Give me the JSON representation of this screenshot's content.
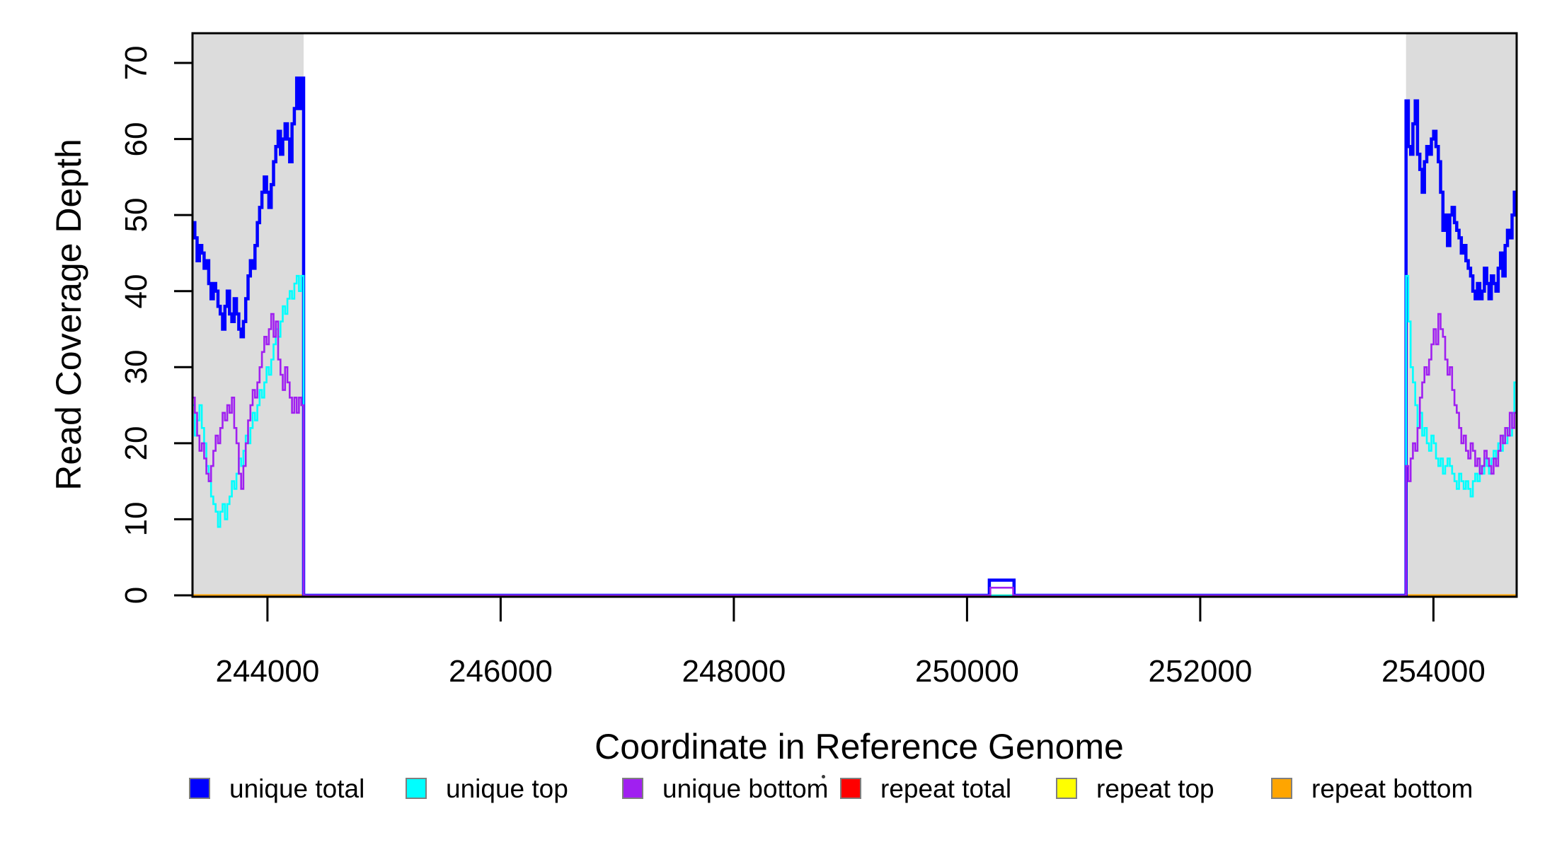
{
  "figure": {
    "x_axis_title": "Coordinate in Reference Genome",
    "y_axis_title": "Read Coverage Depth"
  },
  "legend": {
    "position": "bottom",
    "items": [
      {
        "label": "unique total",
        "color": "#0000FF"
      },
      {
        "label": "unique top",
        "color": "#00FFFF"
      },
      {
        "label": "unique bottom",
        "color": "#A020F0"
      },
      {
        "label": "repeat total",
        "color": "#FF0000"
      },
      {
        "label": "repeat top",
        "color": "#FFFF00"
      },
      {
        "label": "repeat bottom",
        "color": "#FFA500"
      }
    ]
  },
  "chart_data": {
    "type": "line",
    "subtype": "step",
    "title": "",
    "xlabel": "Coordinate in Reference Genome",
    "ylabel": "Read Coverage Depth",
    "xlim": [
      243357,
      254714
    ],
    "ylim": [
      0,
      70
    ],
    "grid": false,
    "legend_position": "bottom",
    "x_ticks": [
      244000,
      246000,
      248000,
      250000,
      252000,
      254000
    ],
    "x_tick_labels": [
      "244000",
      "246000",
      "248000",
      "250000",
      "252000",
      "254000"
    ],
    "y_ticks": [
      0,
      10,
      20,
      30,
      40,
      50,
      60,
      70
    ],
    "y_tick_labels": [
      "0",
      "10",
      "20",
      "30",
      "40",
      "50",
      "60",
      "70"
    ],
    "background_regions": [
      {
        "name": "left-shaded-region",
        "x0": 243357,
        "x1": 244310,
        "color": "#DCDCDC"
      },
      {
        "name": "right-shaded-region",
        "x0": 253765,
        "x1": 254714,
        "color": "#DCDCDC"
      }
    ],
    "x_end": 254714,
    "series": [
      {
        "name": "repeat total",
        "color": "#FF0000",
        "width": 2.6,
        "segments": [
          {
            "points": [
              [
                243357,
                0
              ]
            ]
          }
        ]
      },
      {
        "name": "repeat top",
        "color": "#FFFF00",
        "width": 2.6,
        "segments": [
          {
            "points": [
              [
                243357,
                0
              ]
            ]
          }
        ]
      },
      {
        "name": "repeat bottom",
        "color": "#FFA500",
        "width": 3,
        "segments": [
          {
            "points": [
              [
                243357,
                0
              ]
            ]
          }
        ]
      },
      {
        "name": "unique total",
        "color": "#0000FF",
        "width": 4.5,
        "segments": [
          {
            "x_start": 243357,
            "dx": 19.85,
            "values": [
              49,
              47,
              44,
              46,
              45,
              43,
              44,
              41,
              39,
              41,
              40,
              38,
              37,
              35,
              38,
              40,
              37,
              36,
              39,
              37,
              35,
              34,
              36,
              39,
              42,
              44,
              43,
              46,
              49,
              51,
              53,
              55,
              53,
              51,
              54,
              57,
              59,
              61,
              58,
              60,
              62,
              60,
              57,
              62,
              64,
              68,
              64,
              68
            ]
          },
          {
            "points": [
              [
                244310,
                0
              ],
              [
                250191,
                2
              ],
              [
                250403,
                0
              ]
            ]
          },
          {
            "x_start": 253765,
            "dx": 19.77,
            "values": [
              65,
              59,
              58,
              62,
              65,
              58,
              56,
              53,
              57,
              59,
              58,
              60,
              61,
              59,
              57,
              53,
              48,
              50,
              46,
              50,
              51,
              49,
              48,
              47,
              45,
              46,
              44,
              43,
              42,
              40,
              39,
              41,
              39,
              40,
              43,
              41,
              39,
              42,
              41,
              40,
              43,
              45,
              42,
              46,
              48,
              47,
              50,
              53
            ]
          }
        ]
      },
      {
        "name": "unique top",
        "color": "#00FFFF",
        "width": 2.6,
        "segments": [
          {
            "x_start": 243357,
            "dx": 19.85,
            "values": [
              25,
              21,
              23,
              25,
              22,
              20,
              17,
              15,
              13,
              12,
              11,
              9,
              11,
              12,
              10,
              12,
              13,
              15,
              14,
              16,
              18,
              17,
              19,
              21,
              20,
              22,
              24,
              23,
              25,
              27,
              26,
              28,
              30,
              29,
              31,
              33,
              35,
              34,
              36,
              38,
              37,
              39,
              40,
              39,
              41,
              42,
              40,
              42
            ]
          },
          {
            "points": [
              [
                244310,
                0
              ]
            ]
          },
          {
            "x_start": 253765,
            "dx": 19.77,
            "values": [
              42,
              36,
              30,
              28,
              25,
              22,
              24,
              21,
              22,
              20,
              19,
              21,
              20,
              18,
              17,
              18,
              16,
              17,
              18,
              17,
              16,
              15,
              14,
              16,
              15,
              14,
              15,
              14,
              13,
              15,
              16,
              15,
              17,
              16,
              18,
              17,
              16,
              18,
              19,
              18,
              20,
              19,
              21,
              20,
              22,
              21,
              24,
              28
            ]
          }
        ]
      },
      {
        "name": "unique bottom",
        "color": "#A020F0",
        "width": 2.6,
        "segments": [
          {
            "x_start": 243357,
            "dx": 19.85,
            "values": [
              26,
              24,
              21,
              19,
              20,
              18,
              16,
              15,
              17,
              19,
              21,
              20,
              22,
              24,
              23,
              25,
              24,
              26,
              22,
              20,
              16,
              14,
              17,
              20,
              23,
              25,
              27,
              26,
              28,
              30,
              32,
              34,
              33,
              35,
              37,
              34,
              36,
              31,
              29,
              27,
              30,
              28,
              26,
              24,
              26,
              24,
              26,
              25
            ]
          },
          {
            "points": [
              [
                244310,
                0
              ],
              [
                250200,
                1
              ],
              [
                250396,
                0
              ]
            ]
          },
          {
            "x_start": 253765,
            "dx": 19.77,
            "values": [
              17,
              15,
              18,
              20,
              19,
              22,
              26,
              28,
              30,
              29,
              31,
              33,
              35,
              33,
              37,
              35,
              34,
              31,
              29,
              30,
              27,
              25,
              24,
              22,
              20,
              21,
              19,
              18,
              20,
              19,
              17,
              18,
              16,
              17,
              19,
              18,
              17,
              16,
              18,
              17,
              19,
              21,
              20,
              22,
              21,
              24,
              22,
              24
            ]
          }
        ]
      }
    ]
  }
}
